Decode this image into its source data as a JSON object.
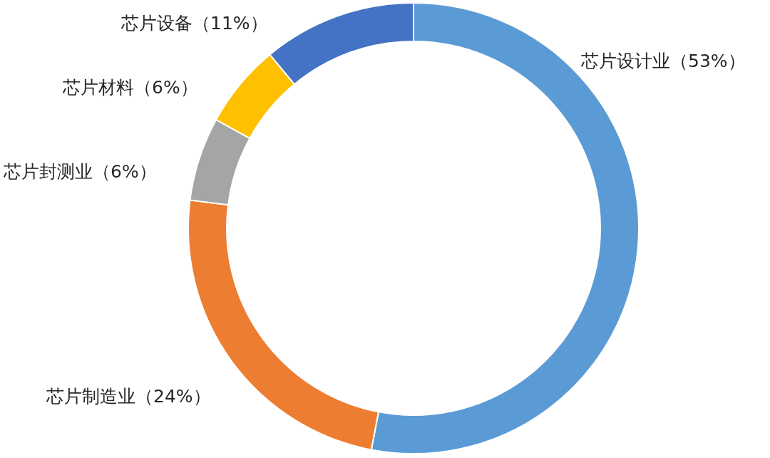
{
  "chart_data": {
    "type": "donut",
    "categories": [
      "芯片设计业（53%）",
      "芯片制造业（24%）",
      "芯片封测业（6%）",
      "芯片材料（6%）",
      "芯片设备（11%）"
    ],
    "values": [
      53,
      24,
      6,
      6,
      11
    ],
    "colors": [
      "#5b9bd5",
      "#ed7d31",
      "#a5a5a5",
      "#ffc000",
      "#4472c4"
    ],
    "legend": false
  }
}
